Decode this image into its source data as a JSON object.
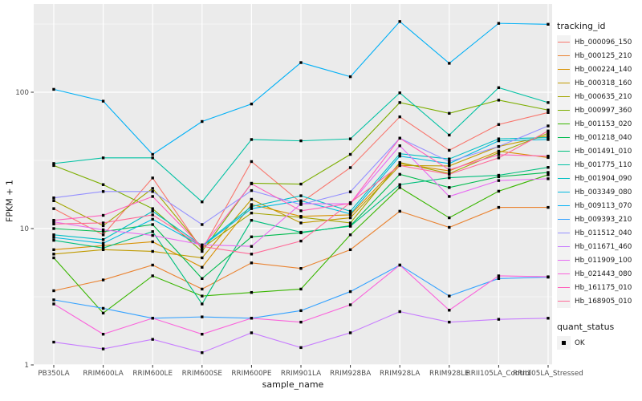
{
  "chart_data": {
    "type": "line",
    "title": "",
    "xlabel": "sample_name",
    "ylabel": "FPKM + 1",
    "x_categories": [
      "PB350LA",
      "RRIM600LA",
      "RRIM600LE",
      "RRIM600SE",
      "RRIM600PE",
      "RRIM901LA",
      "RRIM928BA",
      "RRIM928LA",
      "RRIM928LE",
      "RRII105LA_Control",
      "RRII105LA_Stressed"
    ],
    "y_scale": "log10",
    "y_major_ticks": [
      1,
      10,
      100
    ],
    "y_minor_ticks": [
      3.162,
      31.62,
      316.2
    ],
    "ylim": [
      1,
      440
    ],
    "grid": true,
    "legend_position": "right",
    "point_marker": {
      "shape": "filled-square",
      "color": "#000000",
      "meaning": "quant_status OK"
    },
    "series": [
      {
        "name": "Hb_000096_150",
        "color": "#F8766D",
        "values": [
          14,
          9,
          23.5,
          7,
          31,
          15.5,
          28,
          66,
          37.5,
          58,
          71
        ]
      },
      {
        "name": "Hb_000125_210",
        "color": "#EA8331",
        "values": [
          3.5,
          4.2,
          5.4,
          3.6,
          5.6,
          5.1,
          7,
          13.4,
          10.2,
          14.3,
          14.3
        ]
      },
      {
        "name": "Hb_000224_140",
        "color": "#D89000",
        "values": [
          7,
          7.5,
          8,
          5.2,
          15,
          12.3,
          12.6,
          30,
          26.5,
          37,
          33.2
        ]
      },
      {
        "name": "Hb_000318_160",
        "color": "#C09B00",
        "values": [
          6.5,
          7,
          6.8,
          6.1,
          16.4,
          11,
          12,
          29,
          28.8,
          40,
          48
        ]
      },
      {
        "name": "Hb_000635_210",
        "color": "#A3A500",
        "values": [
          16,
          10.5,
          19.7,
          7.2,
          13,
          12.1,
          11,
          30.5,
          25.3,
          36,
          50
        ]
      },
      {
        "name": "Hb_000997_360",
        "color": "#7CAE00",
        "values": [
          29,
          21,
          14,
          6.8,
          21.5,
          21.2,
          35,
          84,
          70,
          87.5,
          74
        ]
      },
      {
        "name": "Hb_001153_020",
        "color": "#39B600",
        "values": [
          6.1,
          2.4,
          4.5,
          3.2,
          3.4,
          3.6,
          9,
          20,
          12,
          18.8,
          24.8
        ]
      },
      {
        "name": "Hb_001218_040",
        "color": "#00BB4E",
        "values": [
          10,
          9.5,
          10.7,
          4.3,
          8.7,
          9.3,
          10.5,
          25,
          20,
          24,
          25.8
        ]
      },
      {
        "name": "Hb_001491_010",
        "color": "#00BF7D",
        "values": [
          8.2,
          7.2,
          9.5,
          2.8,
          11.5,
          9.4,
          10.4,
          21,
          23.6,
          24.6,
          28.1
        ]
      },
      {
        "name": "Hb_001775_110",
        "color": "#00C1A3",
        "values": [
          30,
          33,
          33,
          15.7,
          45,
          44,
          45.5,
          99,
          48.5,
          108,
          84
        ]
      },
      {
        "name": "Hb_001904_090",
        "color": "#00BFC4",
        "values": [
          9,
          8.3,
          13.4,
          7.5,
          14.5,
          17.4,
          13.4,
          35.4,
          32.4,
          45.5,
          46.5
        ]
      },
      {
        "name": "Hb_003349_080",
        "color": "#00BAE0",
        "values": [
          8.6,
          7.8,
          11.7,
          7.4,
          14,
          16,
          12.8,
          34,
          30,
          44,
          45
        ]
      },
      {
        "name": "Hb_009113_070",
        "color": "#00B0F6",
        "values": [
          105,
          86,
          35,
          61,
          82,
          165,
          130,
          330,
          163,
          320,
          315
        ]
      },
      {
        "name": "Hb_009393_210",
        "color": "#35A2FF",
        "values": [
          3.0,
          2.6,
          2.2,
          2.25,
          2.2,
          2.5,
          3.45,
          5.4,
          3.2,
          4.3,
          4.4
        ]
      },
      {
        "name": "Hb_011512_040",
        "color": "#9590FF",
        "values": [
          16.8,
          18.7,
          18.7,
          10.7,
          19,
          15,
          18.6,
          46,
          31,
          40,
          56.6
        ]
      },
      {
        "name": "Hb_011671_460",
        "color": "#C77CFF",
        "values": [
          1.47,
          1.31,
          1.54,
          1.23,
          1.72,
          1.34,
          1.72,
          2.46,
          2.06,
          2.16,
          2.2
        ]
      },
      {
        "name": "Hb_011909_100",
        "color": "#E76BF3",
        "values": [
          11.2,
          9.8,
          8.9,
          7.6,
          7.4,
          15.2,
          15.2,
          40.5,
          17.2,
          22.5,
          23.2
        ]
      },
      {
        "name": "Hb_021443_080",
        "color": "#FA62DB",
        "values": [
          2.8,
          1.68,
          2.2,
          1.68,
          2.2,
          2.06,
          2.76,
          5.4,
          2.52,
          4.5,
          4.43
        ]
      },
      {
        "name": "Hb_161175_010",
        "color": "#FF62BC",
        "values": [
          11.5,
          12.5,
          17.2,
          7.3,
          21.3,
          13.5,
          15.3,
          46,
          27,
          34.8,
          34
        ]
      },
      {
        "name": "Hb_168905_010",
        "color": "#FF6A98",
        "values": [
          10.8,
          11,
          12.6,
          7.4,
          6.5,
          8.1,
          15.5,
          29,
          25,
          33,
          52
        ]
      }
    ]
  },
  "legend": {
    "tracking_title": "tracking_id",
    "quant_title": "quant_status",
    "quant_items": [
      {
        "label": "OK",
        "marker": "black-square"
      }
    ]
  },
  "theme": {
    "panel_bg": "#EBEBEB",
    "grid_color": "#FFFFFF",
    "axis_text_color": "#4D4D4D",
    "title_color": "#1A1A1A",
    "tick_color": "#333333",
    "legend_key_bg": "#F2F2F2",
    "marker_color": "#000000",
    "background": "#FFFFFF"
  }
}
